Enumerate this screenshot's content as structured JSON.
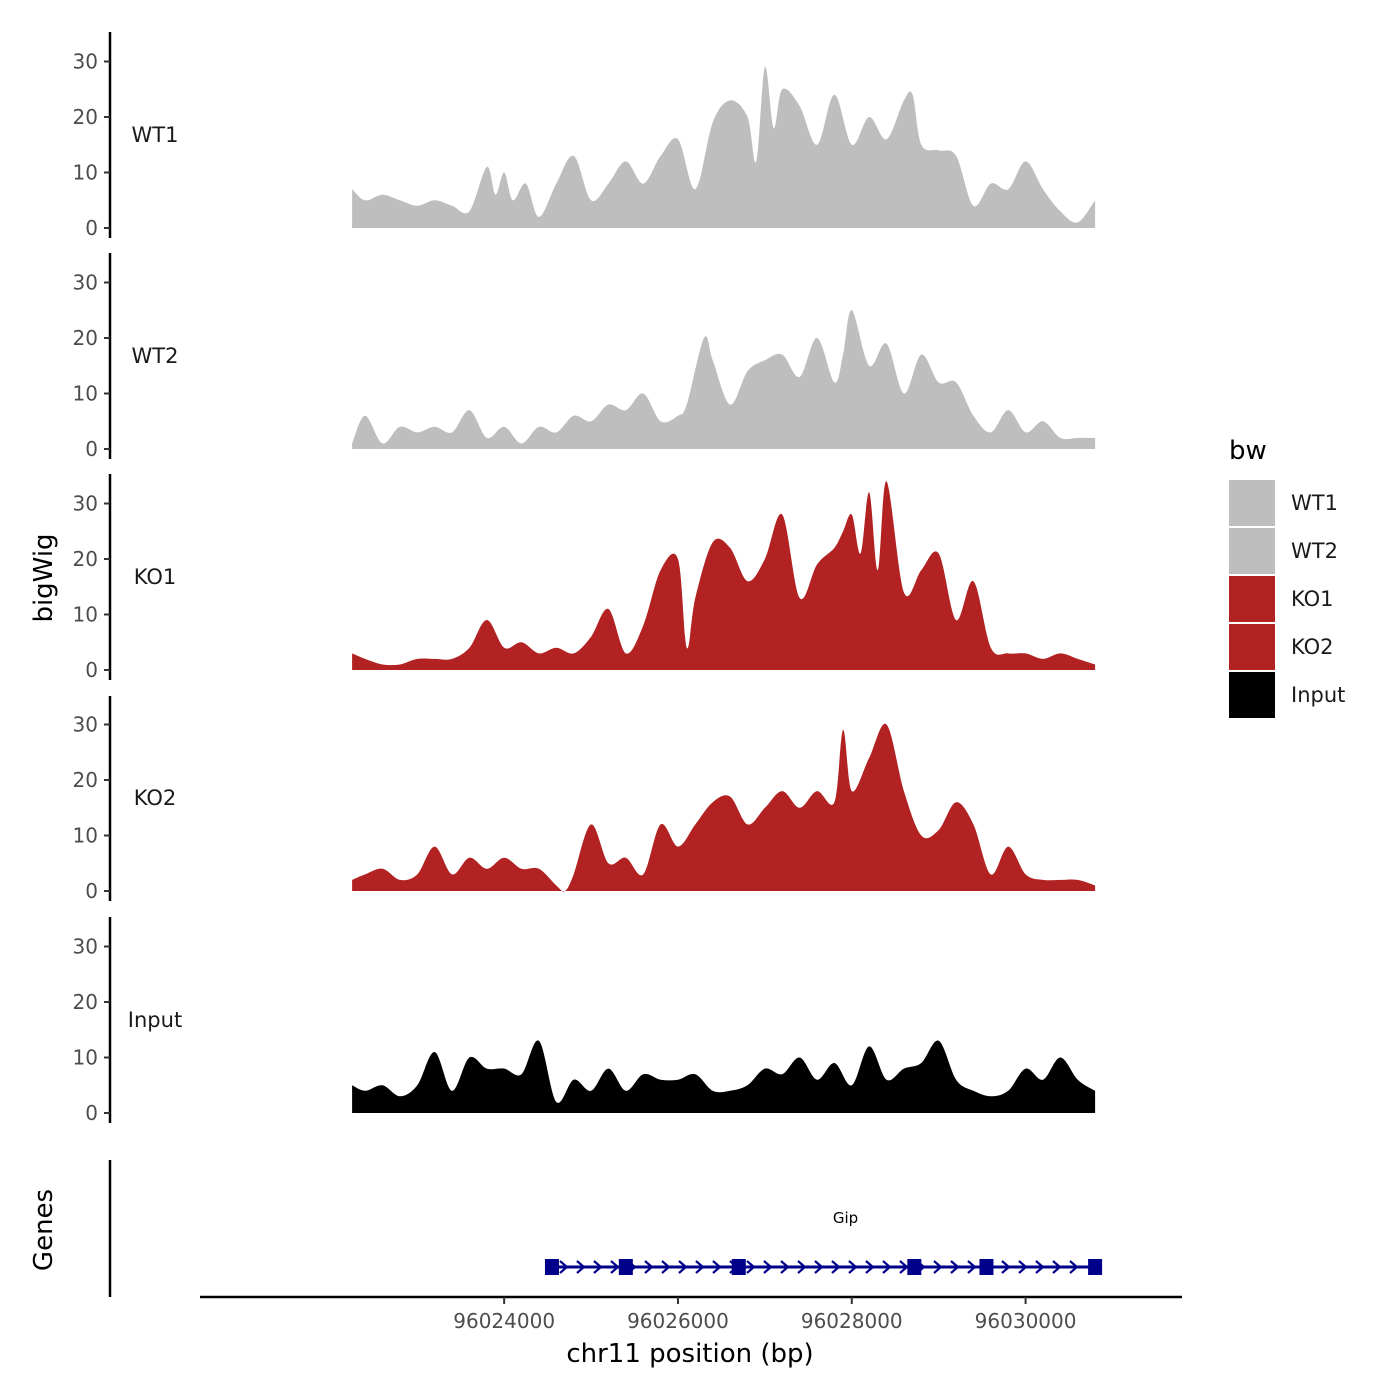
{
  "chart_data": {
    "type": "area",
    "y_axis_title": "bigWig",
    "genes_axis_title": "Genes",
    "x_axis_title": "chr11 position (bp)",
    "x_range": [
      96020500,
      96031800
    ],
    "x_ticks": [
      96024000,
      96026000,
      96028000,
      96030000
    ],
    "x_tick_labels": [
      "96024000",
      "96026000",
      "96028000",
      "96030000"
    ],
    "y_range": [
      0,
      36
    ],
    "y_ticks": [
      0,
      10,
      20,
      30
    ],
    "y_tick_labels": [
      "0",
      "10",
      "20",
      "30"
    ],
    "legend": {
      "title": "bw",
      "items": [
        {
          "label": "WT1",
          "color": "#bebebe"
        },
        {
          "label": "WT2",
          "color": "#bebebe"
        },
        {
          "label": "KO1",
          "color": "#b22222"
        },
        {
          "label": "KO2",
          "color": "#b22222"
        },
        {
          "label": "Input",
          "color": "#000000"
        }
      ]
    },
    "tracks": [
      {
        "name": "WT1",
        "color": "#bebebe",
        "x": [
          96022250,
          96022400,
          96022600,
          96022800,
          96023000,
          96023200,
          96023400,
          96023600,
          96023800,
          96023900,
          96024000,
          96024100,
          96024250,
          96024400,
          96024600,
          96024800,
          96025000,
          96025200,
          96025400,
          96025600,
          96025800,
          96026000,
          96026200,
          96026400,
          96026600,
          96026800,
          96026900,
          96027000,
          96027100,
          96027200,
          96027400,
          96027600,
          96027800,
          96028000,
          96028200,
          96028400,
          96028600,
          96028700,
          96028800,
          96029000,
          96029200,
          96029400,
          96029600,
          96029800,
          96030000,
          96030200,
          96030400,
          96030600,
          96030800
        ],
        "y": [
          7,
          5,
          6,
          5,
          4,
          5,
          4,
          3,
          11,
          6,
          10,
          5,
          8,
          2,
          8,
          13,
          5,
          8,
          12,
          8,
          13,
          16,
          7,
          19,
          23,
          20,
          12,
          29,
          18,
          25,
          22,
          15,
          24,
          15,
          20,
          16,
          23,
          24,
          15,
          14,
          13,
          4,
          8,
          7,
          12,
          7,
          3,
          1,
          5
        ]
      },
      {
        "name": "WT2",
        "color": "#bebebe",
        "x": [
          96022250,
          96022400,
          96022600,
          96022800,
          96023000,
          96023200,
          96023400,
          96023600,
          96023800,
          96024000,
          96024200,
          96024400,
          96024600,
          96024800,
          96025000,
          96025200,
          96025400,
          96025600,
          96025800,
          96026000,
          96026100,
          96026300,
          96026400,
          96026600,
          96026800,
          96027000,
          96027200,
          96027400,
          96027600,
          96027800,
          96027900,
          96028000,
          96028200,
          96028400,
          96028600,
          96028800,
          96029000,
          96029200,
          96029400,
          96029600,
          96029800,
          96030000,
          96030200,
          96030400,
          96030600,
          96030800
        ],
        "y": [
          1,
          6,
          1,
          4,
          3,
          4,
          3,
          7,
          2,
          4,
          1,
          4,
          3,
          6,
          5,
          8,
          7,
          10,
          5,
          6,
          8,
          20,
          16,
          8,
          14,
          16,
          17,
          13,
          20,
          12,
          17,
          25,
          15,
          19,
          10,
          17,
          12,
          12,
          6,
          3,
          7,
          3,
          5,
          2,
          2,
          2
        ]
      },
      {
        "name": "KO1",
        "color": "#b22222",
        "x": [
          96022250,
          96022400,
          96022600,
          96022800,
          96023000,
          96023200,
          96023400,
          96023600,
          96023800,
          96024000,
          96024200,
          96024400,
          96024600,
          96024800,
          96025000,
          96025200,
          96025400,
          96025600,
          96025800,
          96026000,
          96026100,
          96026200,
          96026400,
          96026600,
          96026800,
          96027000,
          96027200,
          96027400,
          96027600,
          96027800,
          96027900,
          96028000,
          96028100,
          96028200,
          96028300,
          96028400,
          96028600,
          96028800,
          96029000,
          96029200,
          96029400,
          96029600,
          96029800,
          96030000,
          96030200,
          96030400,
          96030600,
          96030800
        ],
        "y": [
          3,
          2,
          1,
          1,
          2,
          2,
          2,
          4,
          9,
          4,
          5,
          3,
          4,
          3,
          6,
          11,
          3,
          8,
          18,
          20,
          4,
          13,
          23,
          22,
          16,
          20,
          28,
          13,
          19,
          22,
          25,
          28,
          21,
          32,
          18,
          34,
          14,
          18,
          21,
          9,
          16,
          4,
          3,
          3,
          2,
          3,
          2,
          1
        ]
      },
      {
        "name": "KO2",
        "color": "#b22222",
        "x": [
          96022250,
          96022400,
          96022600,
          96022800,
          96023000,
          96023200,
          96023400,
          96023600,
          96023800,
          96024000,
          96024200,
          96024400,
          96024600,
          96024700,
          96024800,
          96025000,
          96025200,
          96025400,
          96025600,
          96025800,
          96026000,
          96026200,
          96026400,
          96026600,
          96026800,
          96027000,
          96027200,
          96027400,
          96027600,
          96027800,
          96027900,
          96028000,
          96028200,
          96028400,
          96028600,
          96028800,
          96029000,
          96029200,
          96029400,
          96029600,
          96029800,
          96030000,
          96030200,
          96030400,
          96030600,
          96030800
        ],
        "y": [
          2,
          3,
          4,
          2,
          3,
          8,
          3,
          6,
          4,
          6,
          4,
          4,
          1,
          0,
          3,
          12,
          5,
          6,
          3,
          12,
          8,
          12,
          16,
          17,
          12,
          15,
          18,
          15,
          18,
          16,
          29,
          18,
          24,
          30,
          18,
          10,
          11,
          16,
          12,
          3,
          8,
          3,
          2,
          2,
          2,
          1
        ]
      },
      {
        "name": "Input",
        "color": "#000000",
        "x": [
          96022250,
          96022400,
          96022600,
          96022800,
          96023000,
          96023200,
          96023400,
          96023600,
          96023800,
          96024000,
          96024200,
          96024400,
          96024600,
          96024800,
          96025000,
          96025200,
          96025400,
          96025600,
          96025800,
          96026000,
          96026200,
          96026400,
          96026600,
          96026800,
          96027000,
          96027200,
          96027400,
          96027600,
          96027800,
          96028000,
          96028200,
          96028400,
          96028600,
          96028800,
          96029000,
          96029200,
          96029400,
          96029600,
          96029800,
          96030000,
          96030200,
          96030400,
          96030600,
          96030800
        ],
        "y": [
          5,
          4,
          5,
          3,
          5,
          11,
          4,
          10,
          8,
          8,
          7,
          13,
          2,
          6,
          4,
          8,
          4,
          7,
          6,
          6,
          7,
          4,
          4,
          5,
          8,
          7,
          10,
          6,
          9,
          5,
          12,
          6,
          8,
          9,
          13,
          6,
          4,
          3,
          4,
          8,
          6,
          10,
          6,
          4
        ]
      }
    ],
    "gene": {
      "name": "Gip",
      "start": 96024550,
      "end": 96030800,
      "exons": [
        96024550,
        96025400,
        96026700,
        96028720,
        96029550,
        96030800
      ],
      "color": "#00008b"
    }
  }
}
